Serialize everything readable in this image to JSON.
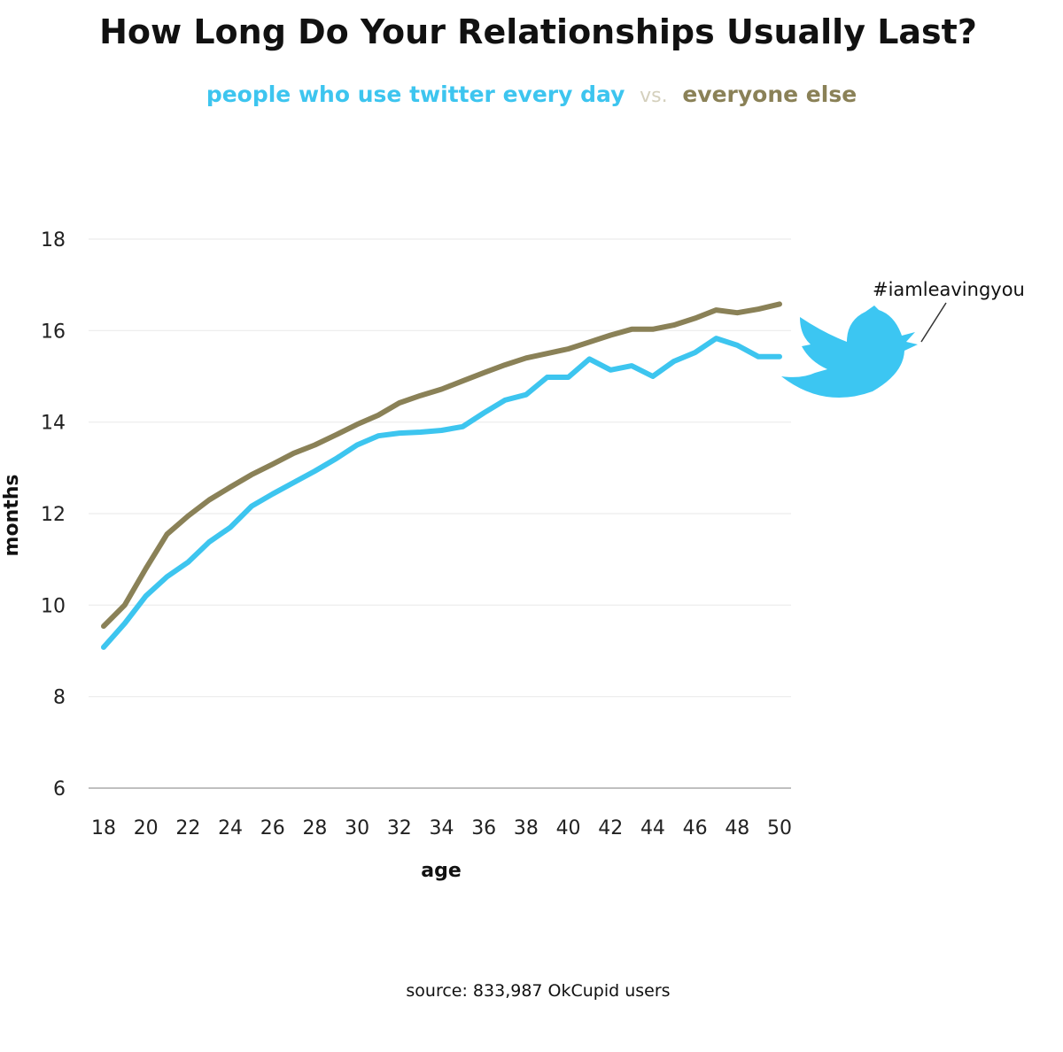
{
  "chart_data": {
    "type": "line",
    "title": "How Long Do Your Relationships Usually Last?",
    "subtitle": {
      "series_a": "people who use twitter every day",
      "separator": "vs.",
      "series_b": "everyone else"
    },
    "xlabel": "age",
    "ylabel": "months",
    "xlim": [
      18,
      50
    ],
    "ylim": [
      6,
      18
    ],
    "x_ticks": [
      18,
      20,
      22,
      24,
      26,
      28,
      30,
      32,
      34,
      36,
      38,
      40,
      42,
      44,
      46,
      48,
      50
    ],
    "y_ticks": [
      6,
      8,
      10,
      12,
      14,
      16,
      18
    ],
    "grid": true,
    "x": [
      18,
      19,
      20,
      21,
      22,
      23,
      24,
      25,
      26,
      27,
      28,
      29,
      30,
      31,
      32,
      33,
      34,
      35,
      36,
      37,
      38,
      39,
      40,
      41,
      42,
      43,
      44,
      45,
      46,
      47,
      48,
      49,
      50
    ],
    "series": [
      {
        "name": "people who use twitter every day",
        "color": "#3dc5ef",
        "values": [
          9.08,
          9.6,
          10.2,
          10.62,
          10.94,
          11.38,
          11.7,
          12.16,
          12.43,
          12.68,
          12.93,
          13.2,
          13.5,
          13.7,
          13.76,
          13.78,
          13.82,
          13.9,
          14.2,
          14.48,
          14.6,
          14.98,
          14.98,
          15.38,
          15.14,
          15.23,
          15.0,
          15.33,
          15.52,
          15.83,
          15.68,
          15.43,
          15.43
        ]
      },
      {
        "name": "everyone else",
        "color": "#8a8157",
        "values": [
          9.54,
          10.0,
          10.8,
          11.55,
          11.95,
          12.3,
          12.58,
          12.85,
          13.08,
          13.32,
          13.5,
          13.72,
          13.95,
          14.15,
          14.42,
          14.58,
          14.72,
          14.9,
          15.08,
          15.25,
          15.4,
          15.5,
          15.6,
          15.75,
          15.9,
          16.03,
          16.03,
          16.12,
          16.27,
          16.45,
          16.39,
          16.47,
          16.58
        ]
      }
    ],
    "annotation": "#iamleavingyou",
    "source": "source: 833,987 OkCupid users"
  },
  "colors": {
    "separator": "#d4d0bd",
    "grid": "#ececec",
    "axis": "#aaaaaa",
    "bird": "#3cc6f2"
  },
  "icons": {
    "annotation_icon": "twitter-bird-icon"
  }
}
